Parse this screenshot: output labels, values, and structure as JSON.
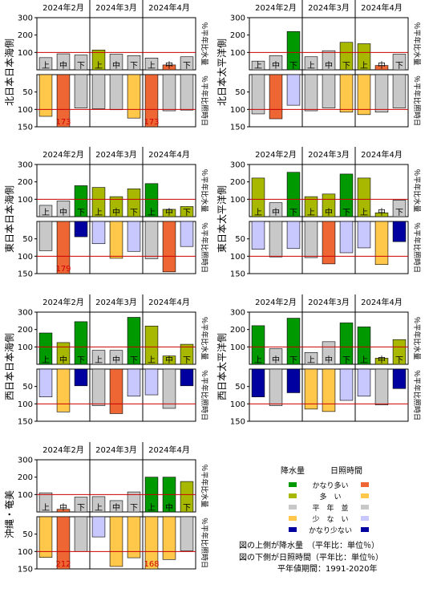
{
  "months": [
    "2024年2月",
    "2024年3月",
    "2024年4月"
  ],
  "decades": [
    "上",
    "中",
    "下"
  ],
  "precip_axis_label": "％平年比水量",
  "sun_axis_label": "％平年比照時日",
  "precip_ticks": [
    "300",
    "200",
    "100"
  ],
  "sun_ticks": [
    "50",
    "100",
    "150"
  ],
  "colors": {
    "precip": {
      "very_high": "#009900",
      "high": "#a8b800",
      "normal": "#c8c8c8",
      "low": "#ffc84a",
      "very_low": "#ee6633"
    },
    "sun": {
      "very_high": "#ee6633",
      "high": "#ffc84a",
      "normal": "#c8c8c8",
      "low": "#c8c8ff",
      "very_low": "#0000a0"
    },
    "reference_line": "#cc0000"
  },
  "chart_data": [
    {
      "type": "bar",
      "region": "北日本日本海側",
      "categories": [
        "2月上",
        "2月中",
        "2月下",
        "3月上",
        "3月中",
        "3月下",
        "4月上",
        "4月中",
        "4月下"
      ],
      "series": [
        {
          "name": "降水量",
          "values": [
            70,
            92,
            85,
            114,
            90,
            82,
            68,
            28,
            75
          ],
          "classes": [
            "normal",
            "normal",
            "normal",
            "high",
            "normal",
            "normal",
            "normal",
            "very_low",
            "normal"
          ]
        },
        {
          "name": "日照時間",
          "values": [
            120,
            173,
            96,
            98,
            101,
            125,
            173,
            104,
            102
          ],
          "classes": [
            "high",
            "very_high",
            "normal",
            "normal",
            "normal",
            "high",
            "very_high",
            "normal",
            "normal"
          ]
        }
      ],
      "annotations": [
        "173"
      ],
      "ylim_precip": [
        0,
        300
      ],
      "ylim_sun": [
        0,
        150
      ]
    },
    {
      "type": "bar",
      "region": "北日本太平洋側",
      "categories": [
        "2月上",
        "2月中",
        "2月下",
        "3月上",
        "3月中",
        "3月下",
        "4月上",
        "4月中",
        "4月下"
      ],
      "series": [
        {
          "name": "降水量",
          "values": [
            50,
            82,
            220,
            75,
            110,
            158,
            150,
            25,
            90
          ],
          "classes": [
            "normal",
            "normal",
            "very_high",
            "normal",
            "normal",
            "high",
            "high",
            "very_low",
            "normal"
          ]
        },
        {
          "name": "日照時間",
          "values": [
            113,
            127,
            88,
            104,
            96,
            108,
            115,
            108,
            96
          ],
          "classes": [
            "normal",
            "very_high",
            "low",
            "normal",
            "normal",
            "high",
            "high",
            "normal",
            "normal"
          ]
        }
      ],
      "annotations": [],
      "ylim_precip": [
        0,
        300
      ],
      "ylim_sun": [
        0,
        150
      ]
    },
    {
      "type": "bar",
      "region": "東日本日本海側",
      "categories": [
        "2月上",
        "2月中",
        "2月下",
        "3月上",
        "3月中",
        "3月下",
        "4月上",
        "4月中",
        "4月下"
      ],
      "series": [
        {
          "name": "降水量",
          "values": [
            65,
            90,
            178,
            168,
            115,
            160,
            190,
            42,
            58
          ],
          "classes": [
            "normal",
            "normal",
            "very_high",
            "high",
            "high",
            "high",
            "very_high",
            "high",
            "high"
          ]
        },
        {
          "name": "日照時間",
          "values": [
            84,
            179,
            44,
            64,
            106,
            86,
            107,
            145,
            72
          ],
          "classes": [
            "normal",
            "very_high",
            "very_low",
            "low",
            "high",
            "low",
            "normal",
            "very_high",
            "low"
          ]
        }
      ],
      "annotations": [
        "179"
      ],
      "ylim_precip": [
        0,
        300
      ],
      "ylim_sun": [
        0,
        150
      ]
    },
    {
      "type": "bar",
      "region": "東日本太平洋側",
      "categories": [
        "2月上",
        "2月中",
        "2月下",
        "3月上",
        "3月中",
        "3月下",
        "4月上",
        "4月中",
        "4月下"
      ],
      "series": [
        {
          "name": "降水量",
          "values": [
            222,
            80,
            255,
            115,
            130,
            245,
            222,
            22,
            95
          ],
          "classes": [
            "high",
            "normal",
            "very_high",
            "high",
            "high",
            "very_high",
            "high",
            "high",
            "normal"
          ]
        },
        {
          "name": "日照時間",
          "values": [
            80,
            102,
            78,
            104,
            122,
            90,
            76,
            124,
            58
          ],
          "classes": [
            "low",
            "normal",
            "low",
            "normal",
            "very_high",
            "low",
            "low",
            "high",
            "very_low"
          ]
        }
      ],
      "annotations": [],
      "ylim_precip": [
        0,
        300
      ],
      "ylim_sun": [
        0,
        150
      ]
    },
    {
      "type": "bar",
      "region": "西日本日本海側",
      "categories": [
        "2月上",
        "2月中",
        "2月下",
        "3月上",
        "3月中",
        "3月下",
        "4月上",
        "4月中",
        "4月下"
      ],
      "series": [
        {
          "name": "降水量",
          "values": [
            180,
            125,
            245,
            80,
            80,
            270,
            220,
            48,
            115
          ],
          "classes": [
            "very_high",
            "high",
            "very_high",
            "normal",
            "normal",
            "very_high",
            "high",
            "high",
            "high"
          ]
        },
        {
          "name": "日照時間",
          "values": [
            80,
            123,
            48,
            105,
            128,
            78,
            74,
            113,
            48
          ],
          "classes": [
            "low",
            "high",
            "very_low",
            "normal",
            "very_high",
            "low",
            "low",
            "normal",
            "very_low"
          ]
        }
      ],
      "annotations": [],
      "ylim_precip": [
        0,
        300
      ],
      "ylim_sun": [
        0,
        150
      ]
    },
    {
      "type": "bar",
      "region": "西日本太平洋側",
      "categories": [
        "2月上",
        "2月中",
        "2月下",
        "3月上",
        "3月中",
        "3月下",
        "4月上",
        "4月中",
        "4月下"
      ],
      "series": [
        {
          "name": "降水量",
          "values": [
            222,
            90,
            265,
            68,
            130,
            238,
            215,
            35,
            142
          ],
          "classes": [
            "very_high",
            "normal",
            "very_high",
            "normal",
            "normal",
            "very_high",
            "very_high",
            "high",
            "high"
          ]
        },
        {
          "name": "日照時間",
          "values": [
            80,
            105,
            68,
            115,
            122,
            90,
            78,
            103,
            56
          ],
          "classes": [
            "very_low",
            "normal",
            "very_low",
            "high",
            "high",
            "low",
            "low",
            "normal",
            "very_low"
          ]
        }
      ],
      "annotations": [],
      "ylim_precip": [
        0,
        300
      ],
      "ylim_sun": [
        0,
        150
      ]
    },
    {
      "type": "bar",
      "region": "沖縄・奄美",
      "categories": [
        "2月上",
        "2月中",
        "2月下",
        "3月上",
        "3月中",
        "3月下",
        "4月上",
        "4月中",
        "4月下"
      ],
      "series": [
        {
          "name": "降水量",
          "values": [
            110,
            15,
            85,
            88,
            65,
            115,
            200,
            200,
            175
          ],
          "classes": [
            "normal",
            "very_low",
            "normal",
            "normal",
            "normal",
            "normal",
            "very_high",
            "very_high",
            "high"
          ]
        },
        {
          "name": "日照時間",
          "values": [
            117,
            212,
            100,
            58,
            143,
            118,
            168,
            123,
            98
          ],
          "classes": [
            "high",
            "very_high",
            "normal",
            "low",
            "high",
            "high",
            "high",
            "high",
            "normal"
          ]
        }
      ],
      "annotations": [
        "212"
      ],
      "ylim_precip": [
        0,
        300
      ],
      "ylim_sun": [
        0,
        150
      ]
    }
  ],
  "legend": {
    "precip_title": "降水量",
    "sun_title": "日照時間",
    "labels": [
      "かなり多い",
      "多　い",
      "平　年　並",
      "少　な　い",
      "かなり少ない"
    ]
  },
  "notes": [
    "図の上側が降水量　（平年比：単位％）",
    "図の下側が日照時間（平年比：単位％）",
    "平年値期間：1991-2020年"
  ]
}
